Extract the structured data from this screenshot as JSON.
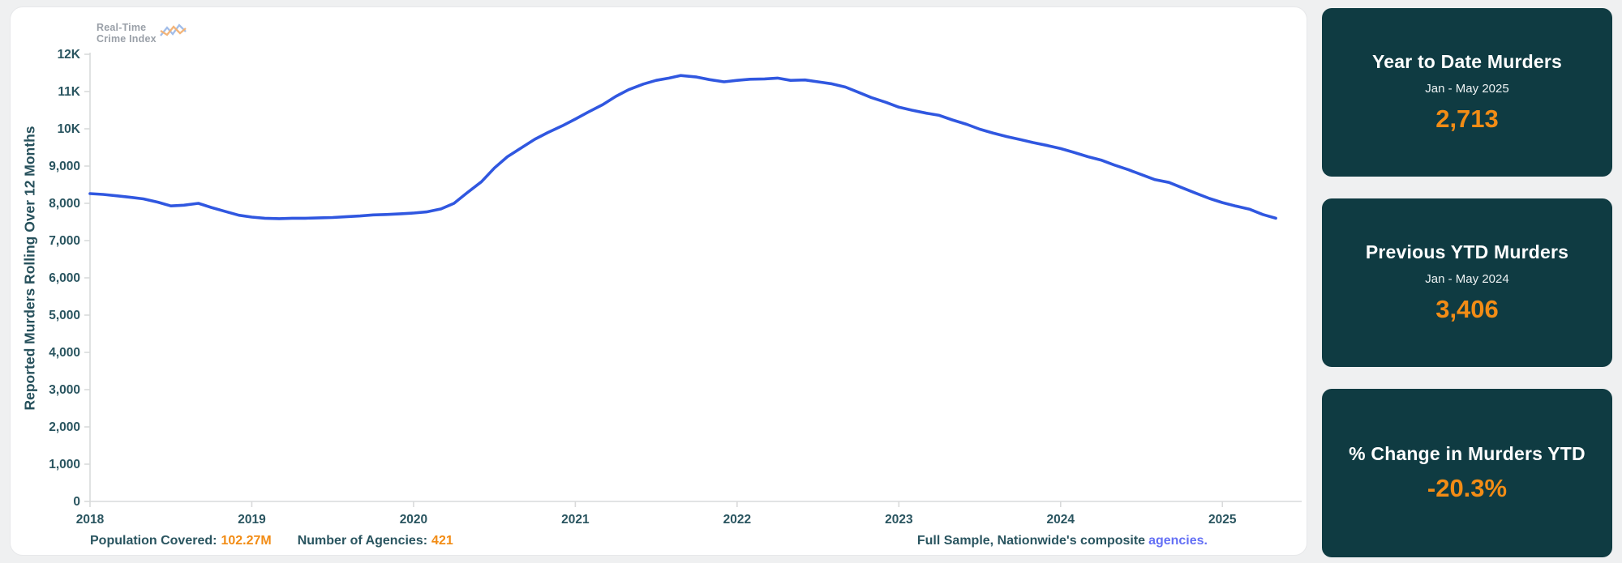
{
  "logo": {
    "line1": "Real-Time",
    "line2": "Crime Index"
  },
  "colors": {
    "line": "#3057e0",
    "axis": "#d9dadb",
    "axis_text": "#2a5560",
    "accent_orange": "#f28c15",
    "card_bg": "#0f3b42",
    "link_blue": "#6470f5"
  },
  "chart_data": {
    "type": "line",
    "title": "",
    "xlabel": "",
    "ylabel": "Reported Murders Rolling Over 12 Months",
    "grid": false,
    "legend": "none",
    "xlim": [
      2018,
      2025.49
    ],
    "ylim": [
      0,
      12000
    ],
    "x_ticks": [
      {
        "label": "2018",
        "value": 2018
      },
      {
        "label": "2019",
        "value": 2019
      },
      {
        "label": "2020",
        "value": 2020
      },
      {
        "label": "2021",
        "value": 2021
      },
      {
        "label": "2022",
        "value": 2022
      },
      {
        "label": "2023",
        "value": 2023
      },
      {
        "label": "2024",
        "value": 2024
      },
      {
        "label": "2025",
        "value": 2025
      }
    ],
    "y_ticks": [
      {
        "label": "12K",
        "value": 12000
      },
      {
        "label": "11K",
        "value": 11000
      },
      {
        "label": "10K",
        "value": 10000
      },
      {
        "label": "9,000",
        "value": 9000
      },
      {
        "label": "8,000",
        "value": 8000
      },
      {
        "label": "7,000",
        "value": 7000
      },
      {
        "label": "6,000",
        "value": 6000
      },
      {
        "label": "5,000",
        "value": 5000
      },
      {
        "label": "4,000",
        "value": 4000
      },
      {
        "label": "3,000",
        "value": 3000
      },
      {
        "label": "2,000",
        "value": 2000
      },
      {
        "label": "1,000",
        "value": 1000
      },
      {
        "label": "0",
        "value": 0
      }
    ],
    "series": [
      {
        "name": "Reported Murders Rolling Over 12 Months",
        "color": "#3057e0",
        "points": [
          [
            2018.0,
            8260
          ],
          [
            2018.08,
            8240
          ],
          [
            2018.17,
            8200
          ],
          [
            2018.25,
            8160
          ],
          [
            2018.33,
            8120
          ],
          [
            2018.42,
            8030
          ],
          [
            2018.5,
            7930
          ],
          [
            2018.58,
            7950
          ],
          [
            2018.67,
            8000
          ],
          [
            2018.75,
            7890
          ],
          [
            2018.83,
            7790
          ],
          [
            2018.92,
            7680
          ],
          [
            2019.0,
            7630
          ],
          [
            2019.08,
            7600
          ],
          [
            2019.17,
            7590
          ],
          [
            2019.25,
            7600
          ],
          [
            2019.33,
            7600
          ],
          [
            2019.42,
            7610
          ],
          [
            2019.5,
            7620
          ],
          [
            2019.58,
            7640
          ],
          [
            2019.67,
            7660
          ],
          [
            2019.75,
            7690
          ],
          [
            2019.83,
            7700
          ],
          [
            2019.92,
            7720
          ],
          [
            2020.0,
            7740
          ],
          [
            2020.08,
            7770
          ],
          [
            2020.17,
            7850
          ],
          [
            2020.25,
            8000
          ],
          [
            2020.33,
            8280
          ],
          [
            2020.42,
            8580
          ],
          [
            2020.5,
            8950
          ],
          [
            2020.58,
            9250
          ],
          [
            2020.67,
            9500
          ],
          [
            2020.75,
            9720
          ],
          [
            2020.83,
            9900
          ],
          [
            2020.92,
            10080
          ],
          [
            2021.0,
            10260
          ],
          [
            2021.08,
            10450
          ],
          [
            2021.17,
            10650
          ],
          [
            2021.25,
            10870
          ],
          [
            2021.33,
            11050
          ],
          [
            2021.42,
            11200
          ],
          [
            2021.5,
            11300
          ],
          [
            2021.58,
            11360
          ],
          [
            2021.65,
            11430
          ],
          [
            2021.75,
            11390
          ],
          [
            2021.83,
            11320
          ],
          [
            2021.92,
            11260
          ],
          [
            2022.0,
            11300
          ],
          [
            2022.08,
            11330
          ],
          [
            2022.17,
            11340
          ],
          [
            2022.25,
            11360
          ],
          [
            2022.33,
            11300
          ],
          [
            2022.42,
            11310
          ],
          [
            2022.5,
            11260
          ],
          [
            2022.58,
            11210
          ],
          [
            2022.67,
            11120
          ],
          [
            2022.75,
            10980
          ],
          [
            2022.83,
            10840
          ],
          [
            2022.92,
            10710
          ],
          [
            2023.0,
            10580
          ],
          [
            2023.08,
            10500
          ],
          [
            2023.17,
            10420
          ],
          [
            2023.25,
            10360
          ],
          [
            2023.33,
            10240
          ],
          [
            2023.42,
            10120
          ],
          [
            2023.5,
            9990
          ],
          [
            2023.58,
            9890
          ],
          [
            2023.67,
            9790
          ],
          [
            2023.75,
            9710
          ],
          [
            2023.83,
            9630
          ],
          [
            2023.92,
            9550
          ],
          [
            2024.0,
            9470
          ],
          [
            2024.08,
            9370
          ],
          [
            2024.17,
            9250
          ],
          [
            2024.25,
            9160
          ],
          [
            2024.33,
            9030
          ],
          [
            2024.42,
            8900
          ],
          [
            2024.5,
            8770
          ],
          [
            2024.58,
            8640
          ],
          [
            2024.67,
            8560
          ],
          [
            2024.75,
            8420
          ],
          [
            2024.83,
            8280
          ],
          [
            2024.92,
            8130
          ],
          [
            2025.0,
            8020
          ],
          [
            2025.08,
            7930
          ],
          [
            2025.17,
            7840
          ],
          [
            2025.25,
            7700
          ],
          [
            2025.33,
            7600
          ]
        ]
      }
    ]
  },
  "annotations": {
    "population_label": "Population Covered:",
    "population_value": "102.27M",
    "agencies_label": "Number of Agencies:",
    "agencies_value": "421",
    "sample_text": "Full Sample, Nationwide's composite",
    "sample_link": "agencies."
  },
  "cards": [
    {
      "title": "Year to Date Murders",
      "subtitle": "Jan - May 2025",
      "value": "2,713"
    },
    {
      "title": "Previous YTD Murders",
      "subtitle": "Jan - May 2024",
      "value": "3,406"
    },
    {
      "title": "% Change in Murders YTD",
      "subtitle": "",
      "value": "-20.3%"
    }
  ]
}
